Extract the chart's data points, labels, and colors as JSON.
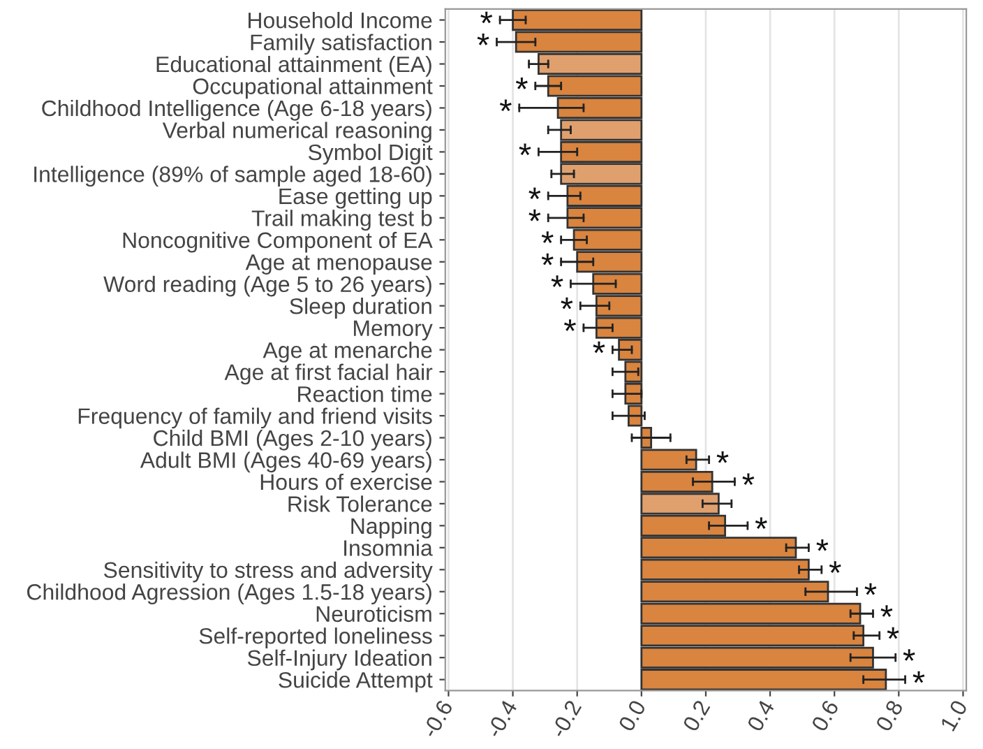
{
  "chart_data": {
    "type": "bar",
    "orientation": "horizontal",
    "categories": [
      "Household Income",
      "Family satisfaction",
      "Educational attainment (EA)",
      "Occupational attainment",
      "Childhood Intelligence (Age 6-18 years)",
      "Verbal numerical reasoning",
      "Symbol Digit",
      "Intelligence (89% of sample aged 18-60)",
      "Ease getting up",
      "Trail making test b",
      "Noncognitive Component of EA",
      "Age at menopause",
      "Word reading (Age 5 to 26 years)",
      "Sleep duration",
      "Memory",
      "Age at menarche",
      "Age at first facial hair",
      "Reaction time",
      "Frequency of family and friend visits",
      "Child BMI (Ages 2-10 years)",
      "Adult BMI (Ages 40-69 years)",
      "Hours of exercise",
      "Risk Tolerance",
      "Napping",
      "Insomnia",
      "Sensitivity to stress and adversity",
      "Childhood Agression (Ages 1.5-18 years)",
      "Neuroticism",
      "Self-reported loneliness",
      "Self-Injury Ideation",
      "Suicide Attempt"
    ],
    "values": [
      -0.4,
      -0.39,
      -0.32,
      -0.29,
      -0.26,
      -0.25,
      -0.25,
      -0.25,
      -0.23,
      -0.23,
      -0.21,
      -0.2,
      -0.15,
      -0.14,
      -0.14,
      -0.07,
      -0.05,
      -0.05,
      -0.04,
      0.03,
      0.17,
      0.22,
      0.24,
      0.26,
      0.48,
      0.52,
      0.58,
      0.68,
      0.69,
      0.72,
      0.76
    ],
    "errors": [
      [
        -0.44,
        -0.36
      ],
      [
        -0.45,
        -0.33
      ],
      [
        -0.35,
        -0.29
      ],
      [
        -0.33,
        -0.25
      ],
      [
        -0.38,
        -0.18
      ],
      [
        -0.29,
        -0.22
      ],
      [
        -0.32,
        -0.2
      ],
      [
        -0.28,
        -0.21
      ],
      [
        -0.29,
        -0.19
      ],
      [
        -0.29,
        -0.18
      ],
      [
        -0.25,
        -0.17
      ],
      [
        -0.25,
        -0.15
      ],
      [
        -0.22,
        -0.08
      ],
      [
        -0.19,
        -0.1
      ],
      [
        -0.18,
        -0.09
      ],
      [
        -0.09,
        -0.03
      ],
      [
        -0.09,
        -0.01
      ],
      [
        -0.09,
        0.0
      ],
      [
        -0.09,
        0.01
      ],
      [
        -0.03,
        0.09
      ],
      [
        0.14,
        0.21
      ],
      [
        0.16,
        0.29
      ],
      [
        0.19,
        0.28
      ],
      [
        0.21,
        0.33
      ],
      [
        0.45,
        0.52
      ],
      [
        0.49,
        0.56
      ],
      [
        0.51,
        0.67
      ],
      [
        0.65,
        0.72
      ],
      [
        0.66,
        0.74
      ],
      [
        0.65,
        0.79
      ],
      [
        0.69,
        0.82
      ]
    ],
    "colors": [
      "#d9843f",
      "#d9843f",
      "#e0a06e",
      "#d9843f",
      "#d9843f",
      "#e0a06e",
      "#d9843f",
      "#e0a06e",
      "#d9843f",
      "#d9843f",
      "#d9843f",
      "#d9843f",
      "#d9843f",
      "#d9843f",
      "#d9843f",
      "#d9843f",
      "#d9843f",
      "#d9843f",
      "#d9843f",
      "#d9843f",
      "#d9843f",
      "#d9843f",
      "#e0a06e",
      "#d9843f",
      "#d9843f",
      "#d9843f",
      "#d9843f",
      "#d9843f",
      "#d9843f",
      "#d9843f",
      "#d9843f"
    ],
    "xlim": [
      -0.61,
      1.01
    ],
    "xticks": [
      {
        "value": -0.6,
        "label": "-0.6"
      },
      {
        "value": -0.4,
        "label": "-0.4"
      },
      {
        "value": -0.2,
        "label": "-0.2"
      },
      {
        "value": 0.0,
        "label": "0.0"
      },
      {
        "value": 0.2,
        "label": "0.2"
      },
      {
        "value": 0.4,
        "label": "0.4"
      },
      {
        "value": 0.6,
        "label": "0.6"
      },
      {
        "value": 0.8,
        "label": "0.8"
      },
      {
        "value": 1.0,
        "label": "1.0"
      }
    ],
    "grid": "x",
    "annotations": [
      {
        "text": "*",
        "x": -0.44,
        "y": "Household Income"
      },
      {
        "text": "*",
        "x": -0.45,
        "y": "Family satisfaction"
      },
      {
        "text": "*",
        "x": -0.33,
        "y": "Occupational attainment"
      },
      {
        "text": "*",
        "x": -0.38,
        "y": "Childhood Intelligence (Age 6-18 years)"
      },
      {
        "text": "*",
        "x": -0.32,
        "y": "Symbol Digit"
      },
      {
        "text": "*",
        "x": -0.29,
        "y": "Ease getting up"
      },
      {
        "text": "*",
        "x": -0.29,
        "y": "Trail making test b"
      },
      {
        "text": "*",
        "x": -0.25,
        "y": "Noncognitive Component of EA"
      },
      {
        "text": "*",
        "x": -0.25,
        "y": "Age at menopause"
      },
      {
        "text": "*",
        "x": -0.22,
        "y": "Word reading (Age 5 to 26 years)"
      },
      {
        "text": "*",
        "x": -0.19,
        "y": "Sleep duration"
      },
      {
        "text": "*",
        "x": -0.18,
        "y": "Memory"
      },
      {
        "text": "*",
        "x": -0.09,
        "y": "Age at menarche"
      },
      {
        "text": "*",
        "x": 0.21,
        "y": "Adult BMI (Ages 40-69 years)"
      },
      {
        "text": "*",
        "x": 0.29,
        "y": "Hours of exercise"
      },
      {
        "text": "*",
        "x": 0.33,
        "y": "Napping"
      },
      {
        "text": "*",
        "x": 0.52,
        "y": "Insomnia"
      },
      {
        "text": "*",
        "x": 0.56,
        "y": "Sensitivity to stress and adversity"
      },
      {
        "text": "*",
        "x": 0.67,
        "y": "Childhood Agression (Ages 1.5-18 years)"
      },
      {
        "text": "*",
        "x": 0.72,
        "y": "Neuroticism"
      },
      {
        "text": "*",
        "x": 0.74,
        "y": "Self-reported loneliness"
      },
      {
        "text": "*",
        "x": 0.79,
        "y": "Self-Injury Ideation"
      },
      {
        "text": "*",
        "x": 0.82,
        "y": "Suicide Attempt"
      }
    ]
  }
}
